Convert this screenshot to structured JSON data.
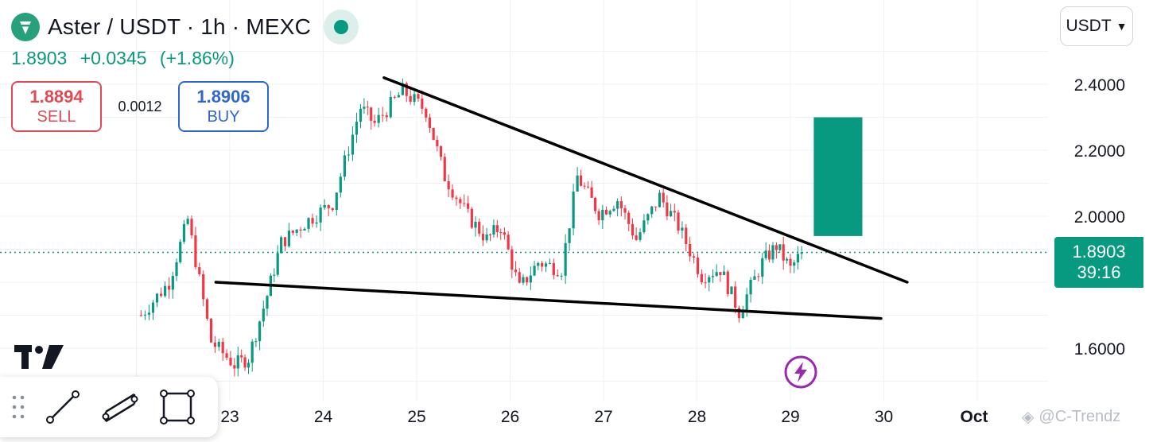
{
  "header": {
    "title": "Aster / USDT · 1h · MEXC",
    "last_price": "1.8903",
    "change": "+0.0345",
    "change_pct": "(+1.86%)"
  },
  "trade": {
    "sell_price": "1.8894",
    "sell_label": "SELL",
    "spread": "0.0012",
    "buy_price": "1.8906",
    "buy_label": "BUY"
  },
  "currency_select": {
    "value": "USDT"
  },
  "price_tag": {
    "price": "1.8903",
    "countdown": "39:16"
  },
  "watermark": {
    "text": "@C-Trendz"
  },
  "colors": {
    "up": "#089981",
    "down": "#f23645",
    "sell": "#e04a55",
    "buy": "#2f66d0",
    "purple": "#9c27b0"
  },
  "toolbar": {
    "tools": [
      "grip-icon",
      "trend-line-icon",
      "parallel-channel-icon",
      "rectangle-icon"
    ]
  },
  "chart_data": {
    "type": "candlestick",
    "x_ticks": [
      "23",
      "24",
      "25",
      "26",
      "27",
      "28",
      "29",
      "30",
      "Oct"
    ],
    "y_ticks": [
      "1.6000",
      "2.0000",
      "2.2000",
      "2.4000"
    ],
    "ylim": [
      1.45,
      2.55
    ],
    "interval": "1h",
    "grid": true,
    "last_price": 1.8903,
    "anchors": [
      {
        "day": 22.05,
        "price": 1.7
      },
      {
        "day": 22.35,
        "price": 1.8
      },
      {
        "day": 22.55,
        "price": 1.99
      },
      {
        "day": 22.8,
        "price": 1.62
      },
      {
        "day": 23.05,
        "price": 1.55
      },
      {
        "day": 23.2,
        "price": 1.57
      },
      {
        "day": 23.4,
        "price": 1.76
      },
      {
        "day": 23.55,
        "price": 1.92
      },
      {
        "day": 23.8,
        "price": 1.98
      },
      {
        "day": 24.1,
        "price": 2.04
      },
      {
        "day": 24.4,
        "price": 2.33
      },
      {
        "day": 24.55,
        "price": 2.28
      },
      {
        "day": 24.85,
        "price": 2.38
      },
      {
        "day": 25.1,
        "price": 2.32
      },
      {
        "day": 25.3,
        "price": 2.12
      },
      {
        "day": 25.55,
        "price": 2.0
      },
      {
        "day": 25.75,
        "price": 1.93
      },
      {
        "day": 25.9,
        "price": 1.97
      },
      {
        "day": 26.1,
        "price": 1.78
      },
      {
        "day": 26.3,
        "price": 1.86
      },
      {
        "day": 26.55,
        "price": 1.84
      },
      {
        "day": 26.72,
        "price": 2.12
      },
      {
        "day": 26.95,
        "price": 2.01
      },
      {
        "day": 27.15,
        "price": 2.05
      },
      {
        "day": 27.35,
        "price": 1.93
      },
      {
        "day": 27.6,
        "price": 2.06
      },
      {
        "day": 27.8,
        "price": 1.97
      },
      {
        "day": 28.05,
        "price": 1.82
      },
      {
        "day": 28.25,
        "price": 1.84
      },
      {
        "day": 28.45,
        "price": 1.71
      },
      {
        "day": 28.7,
        "price": 1.86
      },
      {
        "day": 28.85,
        "price": 1.91
      },
      {
        "day": 29.0,
        "price": 1.84
      },
      {
        "day": 29.12,
        "price": 1.8903
      }
    ],
    "trendlines": [
      {
        "name": "upper-resistance",
        "points": [
          {
            "day": 24.65,
            "price": 2.42
          },
          {
            "day": 30.25,
            "price": 1.8
          }
        ]
      },
      {
        "name": "lower-support",
        "points": [
          {
            "day": 22.85,
            "price": 1.8
          },
          {
            "day": 29.97,
            "price": 1.69
          }
        ]
      }
    ],
    "target_box": {
      "day_start": 29.25,
      "day_end": 29.77,
      "price_top": 2.3,
      "price_bottom": 1.94
    }
  }
}
